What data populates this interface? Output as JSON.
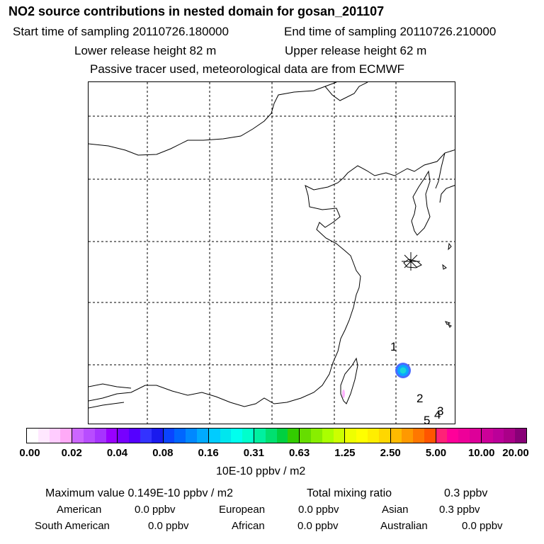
{
  "header": {
    "title": "NO2 source contributions in nested domain for gosan_201107",
    "start_time": "Start time of sampling 20110726.180000",
    "end_time": "End time of sampling 20110726.210000",
    "lower_release": "Lower release height   82 m",
    "upper_release": "Upper release height   62 m",
    "tracer_note": "Passive tracer used, meteorological data are from ECMWF"
  },
  "map": {
    "labels": [
      "1",
      "2",
      "3",
      "4",
      "5"
    ],
    "colors": {
      "coast": "#000000",
      "grid": "#000000",
      "blob_outer": "#4a6bff",
      "blob_mid": "#0aa6ff",
      "blob_inner": "#1ad6d6",
      "trace": "#ffb3ff"
    }
  },
  "colorbar": {
    "ticks": [
      "0.00",
      "0.02",
      "0.04",
      "0.08",
      "0.16",
      "0.31",
      "0.63",
      "1.25",
      "2.50",
      "5.00",
      "10.00",
      "20.00"
    ],
    "unit": "10E-10 ppbv / m2",
    "segments": [
      [
        "#ffffff",
        "#ffe8ff",
        "#ffccff",
        "#ffaaf7"
      ],
      [
        "#cc66ff",
        "#b84dff",
        "#a633ff",
        "#9900ff"
      ],
      [
        "#7700ff",
        "#5500ff",
        "#3333ff",
        "#1a1aee"
      ],
      [
        "#0a44ff",
        "#0066ff",
        "#0088ff",
        "#00aaff"
      ],
      [
        "#00ccff",
        "#00e6ee",
        "#00ffee",
        "#00ffcc"
      ],
      [
        "#00f0a0",
        "#00e070",
        "#00d040",
        "#33cc00"
      ],
      [
        "#66dd00",
        "#88ee00",
        "#aaff00",
        "#ccff00"
      ],
      [
        "#eeff00",
        "#ffff00",
        "#ffee00",
        "#ffd700"
      ],
      [
        "#ffbb00",
        "#ff9900",
        "#ff7700",
        "#ff5500"
      ],
      [
        "#ff2277",
        "#ff0099",
        "#ee0099",
        "#dd0099"
      ],
      [
        "#cc0099",
        "#bb0099",
        "#aa0088",
        "#880077"
      ]
    ]
  },
  "summary": {
    "max_value": "Maximum value  0.149E-10 ppbv / m2",
    "total_label": "Total mixing ratio",
    "total_value": "0.3 ppbv",
    "regions": [
      {
        "name": "American",
        "value": "0.0 ppbv"
      },
      {
        "name": "European",
        "value": "0.0 ppbv"
      },
      {
        "name": "Asian",
        "value": "0.3 ppbv"
      },
      {
        "name": "South American",
        "value": "0.0 ppbv"
      },
      {
        "name": "African",
        "value": "0.0 ppbv"
      },
      {
        "name": "Australian",
        "value": "0.0 ppbv"
      }
    ]
  }
}
